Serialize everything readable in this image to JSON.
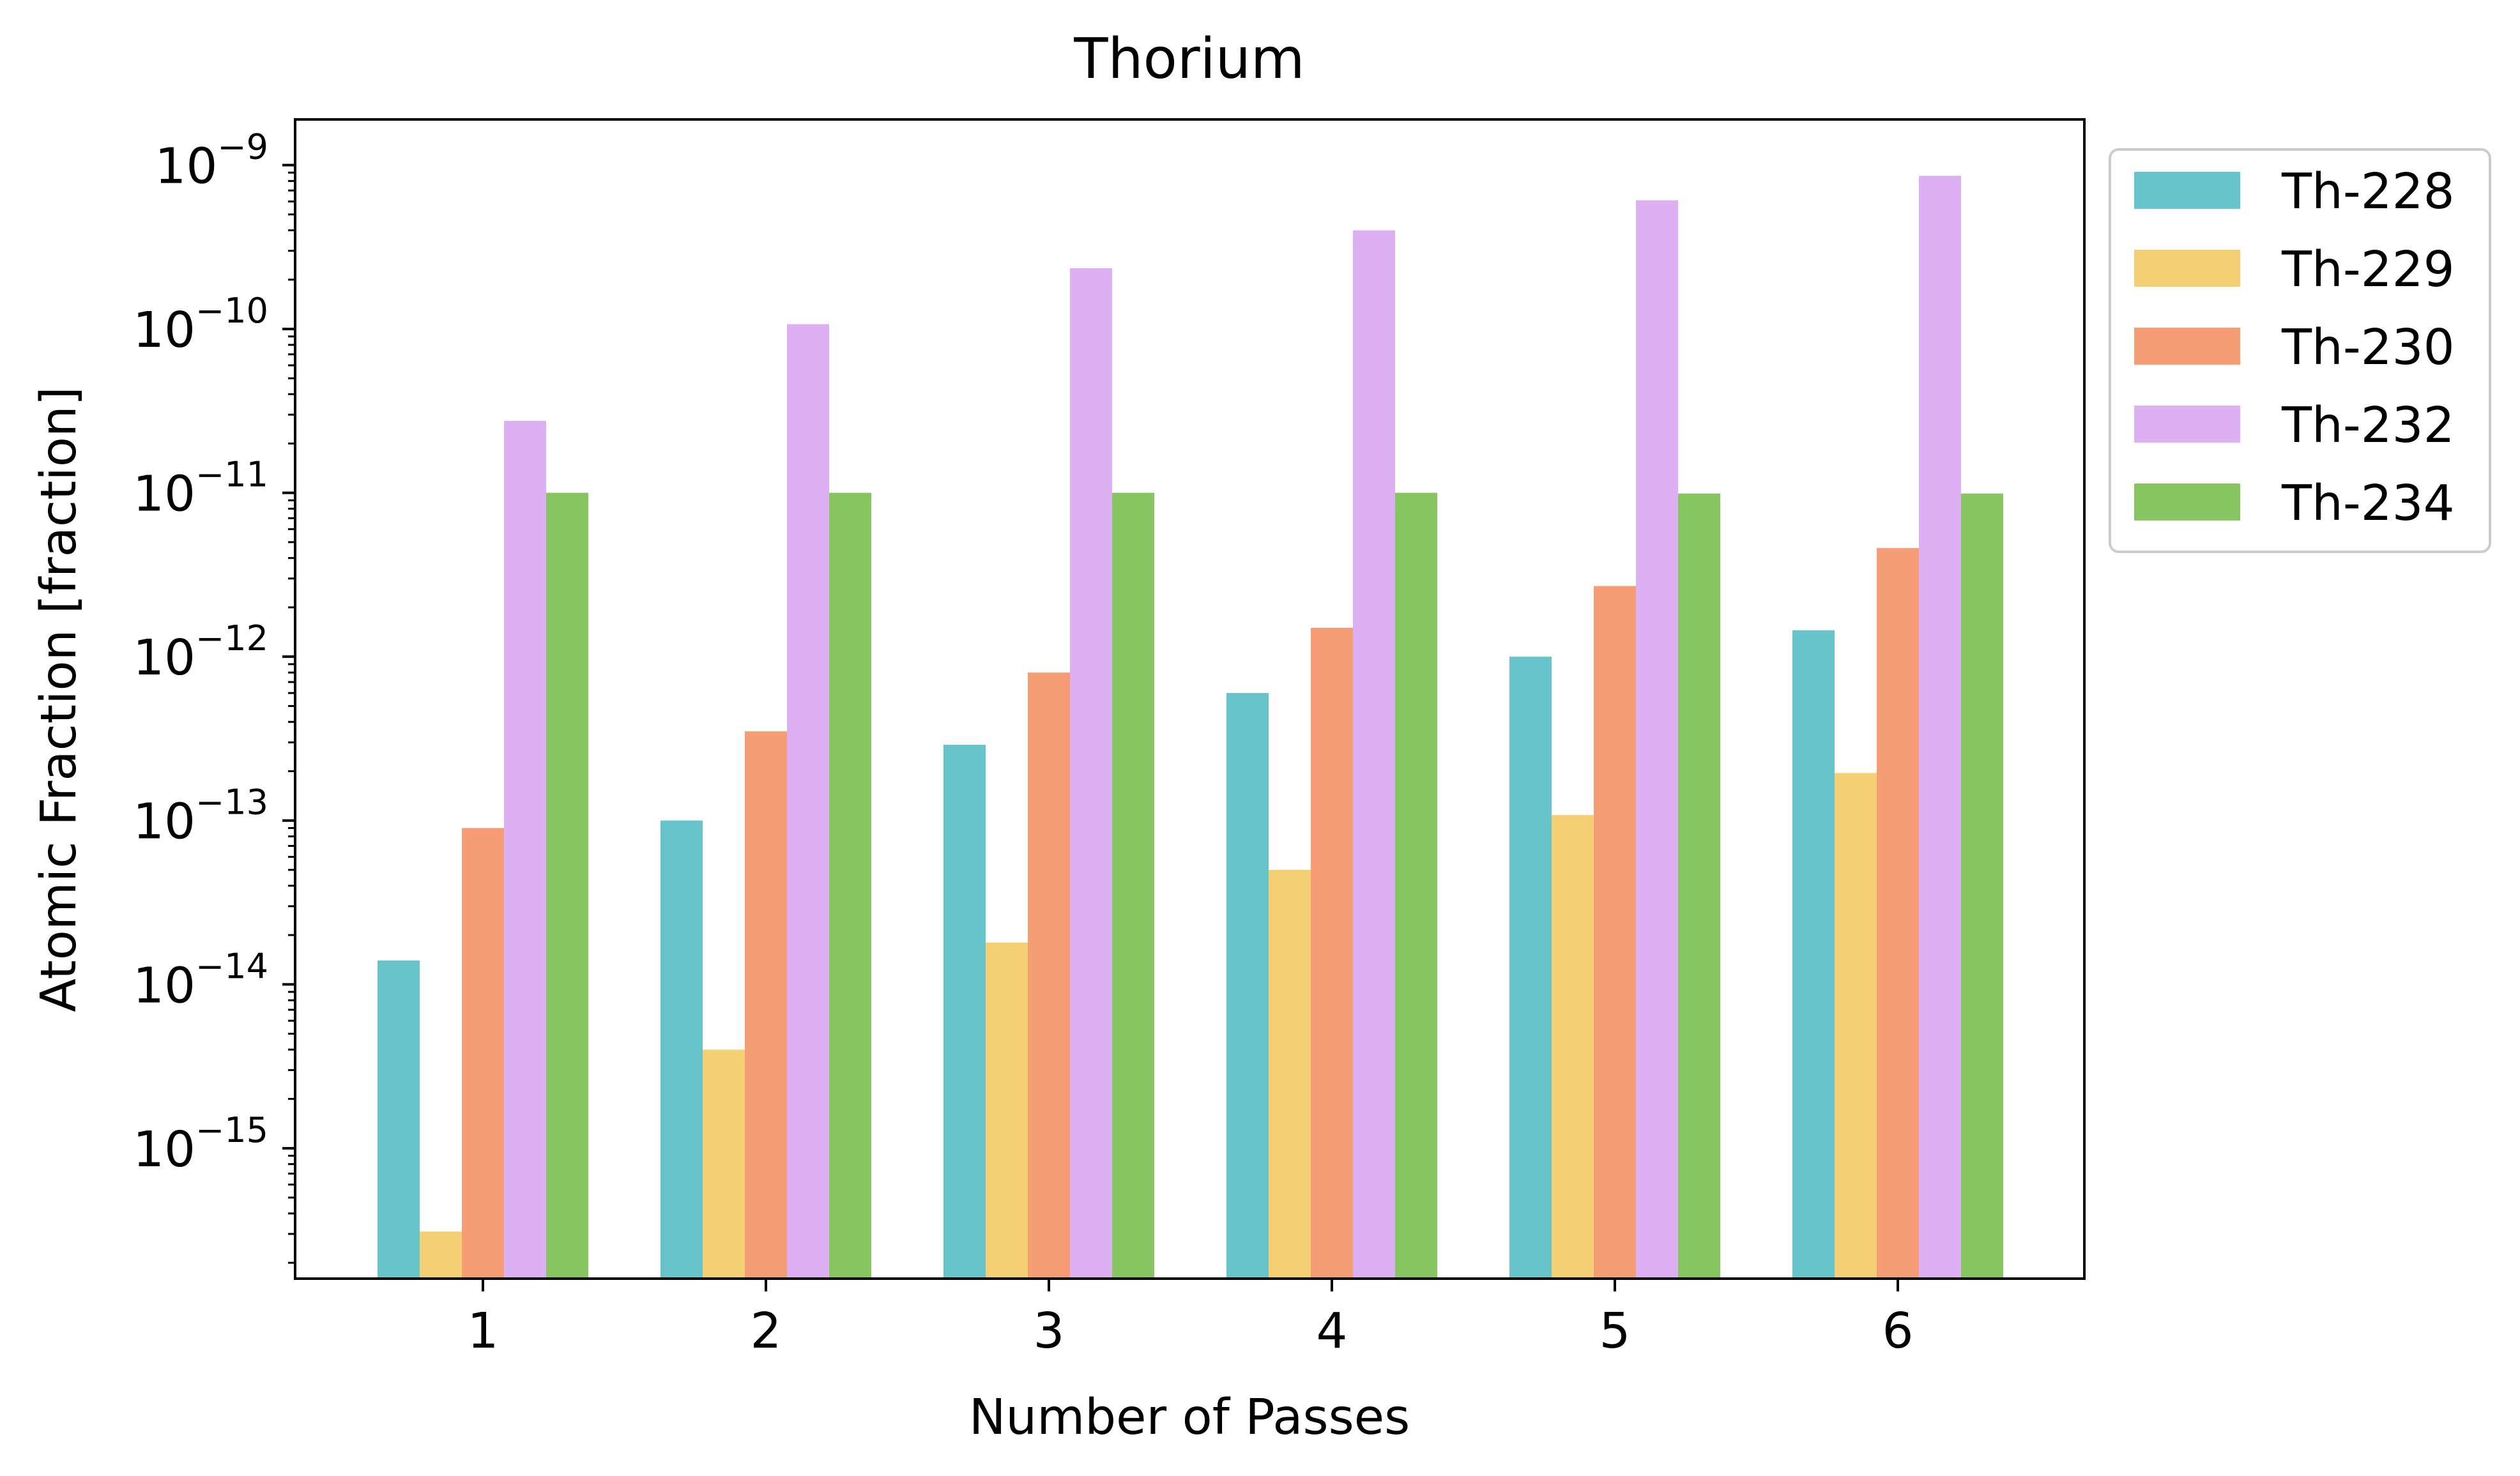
{
  "chart_data": {
    "type": "bar",
    "title": "Thorium",
    "xlabel": "Number of Passes",
    "ylabel": "Atomic Fraction [fraction]",
    "yscale": "log",
    "ylim": [
      1.6e-16,
      1.9e-09
    ],
    "yticks": [
      1e-15,
      1e-14,
      1e-13,
      1e-12,
      1e-11,
      1e-10,
      1e-09
    ],
    "ytick_labels": [
      "10",
      "10",
      "10",
      "10",
      "10",
      "10",
      "10"
    ],
    "ytick_exponents": [
      "−15",
      "−14",
      "−13",
      "−12",
      "−11",
      "−10",
      "−9"
    ],
    "categories": [
      "1",
      "2",
      "3",
      "4",
      "5",
      "6"
    ],
    "grid": false,
    "legend_position": "outside-upper-right",
    "series": [
      {
        "name": "Th-228",
        "color": "#67c4cb",
        "values": [
          1.4e-14,
          1e-13,
          2.9e-13,
          6e-13,
          1e-12,
          1.45e-12
        ]
      },
      {
        "name": "Th-229",
        "color": "#f5cf73",
        "values": [
          3.1e-16,
          4e-15,
          1.8e-14,
          5e-14,
          1.08e-13,
          1.95e-13
        ]
      },
      {
        "name": "Th-230",
        "color": "#f69d75",
        "values": [
          9e-14,
          3.5e-13,
          8e-13,
          1.5e-12,
          2.7e-12,
          4.6e-12
        ]
      },
      {
        "name": "Th-232",
        "color": "#dcb0f2",
        "values": [
          2.75e-11,
          1.07e-10,
          2.35e-10,
          4e-10,
          6.1e-10,
          8.6e-10
        ]
      },
      {
        "name": "Th-234",
        "color": "#86c55f",
        "values": [
          1e-11,
          1e-11,
          1e-11,
          1e-11,
          9.9e-12,
          9.9e-12
        ]
      }
    ]
  }
}
